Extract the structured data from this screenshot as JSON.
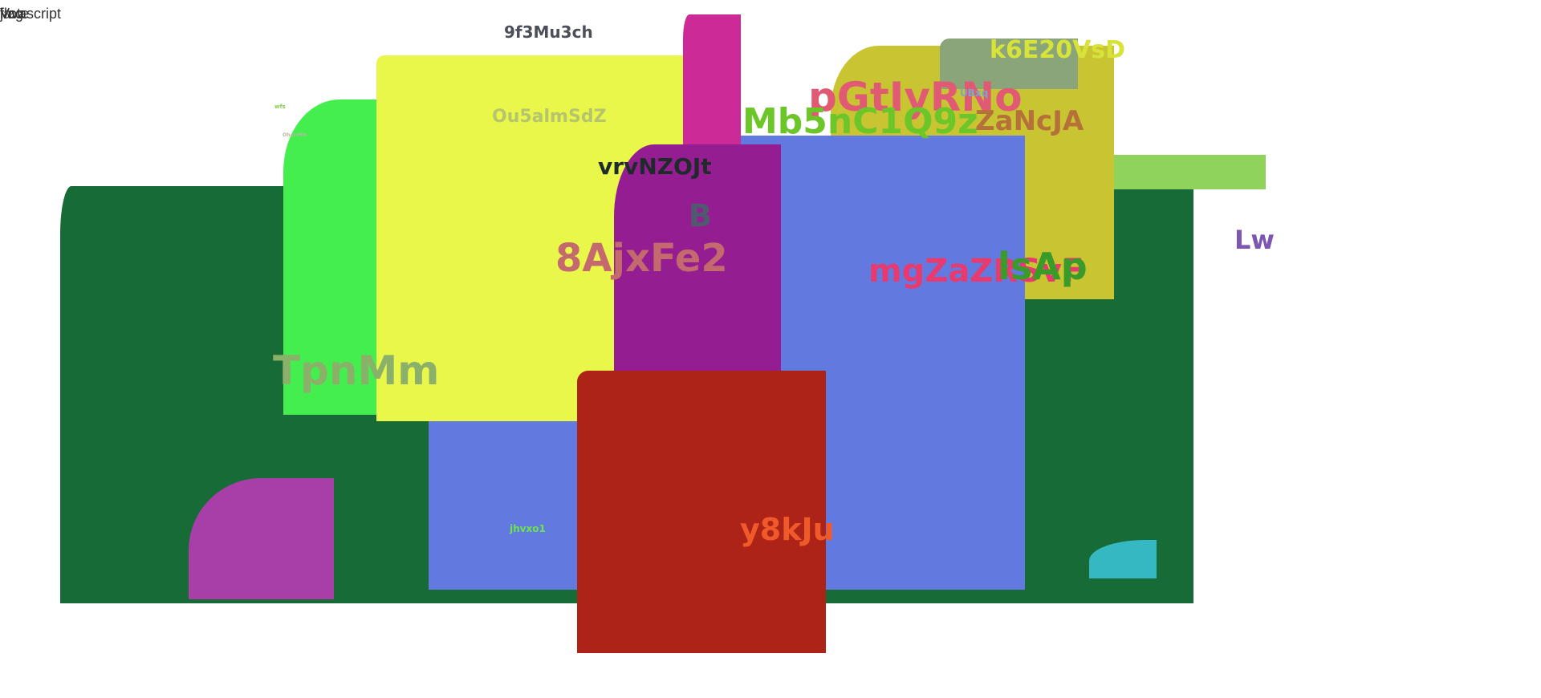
{
  "corner_text": [
    "javascript",
    "jhvxo1",
    "Lw",
    "flag",
    "Vote"
  ],
  "labels": {
    "l_9f3": "9f3Mu3ch",
    "l_ou5": "Ou5almSdZ",
    "l_wfs": "wfs",
    "l_oga": "Oharv9lo",
    "l_vrv": "vrvNZOJt",
    "l_b": "B",
    "l_8aj": "8AjxFe2",
    "l_tpn": "TpnMm",
    "l_pgt": "pGtIyRNo",
    "l_ubx": "UBxq",
    "l_k6e": "k6E20VsD",
    "l_mb5": "Mb5nC1Q9z",
    "l_zan": "ZaNcJA",
    "l_mgz": "mgZaZRSvF",
    "l_lap": "lsAp",
    "l_lw": "Lw",
    "l_jhv": "jhvxo1",
    "l_y8k": "y8kJu"
  },
  "colors": {
    "dark_green": "#176b36",
    "bright_green": "#45ee4f",
    "yellow": "#e8f74a",
    "magenta": "#cc2a96",
    "purple": "#951d92",
    "blue": "#627ae0",
    "red": "#ad2318",
    "olive": "#c9c432",
    "sage": "#8aa57a",
    "light_green": "#8fd35d",
    "orchid": "#a83fa9",
    "teal": "#35b8c1"
  }
}
